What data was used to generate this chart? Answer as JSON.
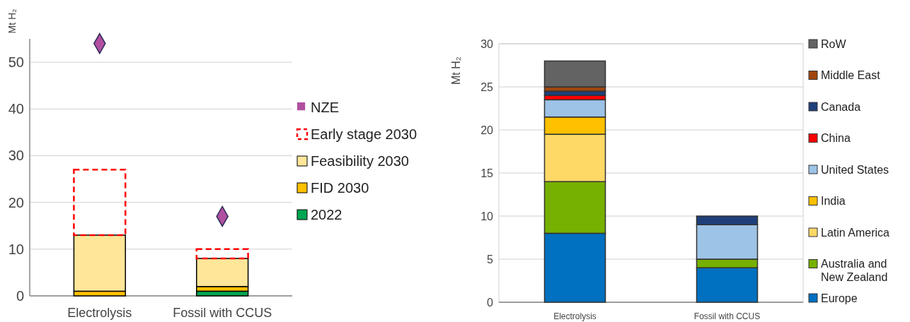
{
  "chart_data": [
    {
      "type": "bar",
      "stacked": true,
      "ylabel": "Mt H₂",
      "categories": [
        "Electrolysis",
        "Fossil with CCUS"
      ],
      "ylim": [
        0,
        55
      ],
      "yticks": [
        0,
        10,
        20,
        30,
        40,
        50
      ],
      "grid": "y",
      "legend": "right",
      "series": [
        {
          "name": "2022",
          "color": "#00a651",
          "values": [
            0,
            1
          ]
        },
        {
          "name": "FID 2030",
          "color": "#ffc000",
          "values": [
            1,
            1
          ]
        },
        {
          "name": "Feasibility 2030",
          "color": "#ffe699",
          "values": [
            12,
            6
          ]
        },
        {
          "name": "Early stage 2030",
          "color": "#ff0000",
          "line_style": "dashed",
          "values": [
            14,
            2
          ]
        },
        {
          "name": "NZE",
          "type": "scatter",
          "marker": "diamond",
          "color": "#b04fa0",
          "values": [
            54,
            17
          ]
        }
      ]
    },
    {
      "type": "bar",
      "stacked": true,
      "ylabel": "Mt H₂",
      "categories": [
        "Electrolysis",
        "Fossil with CCUS"
      ],
      "ylim": [
        0,
        30
      ],
      "yticks": [
        0,
        5,
        10,
        15,
        20,
        25,
        30
      ],
      "grid": "y",
      "legend": "right",
      "series": [
        {
          "name": "Europe",
          "color": "#0070c0",
          "values": [
            8,
            4
          ]
        },
        {
          "name": "Australia and New Zealand",
          "color": "#76b000",
          "values": [
            6,
            1
          ]
        },
        {
          "name": "Latin America",
          "color": "#ffd966",
          "values": [
            5.5,
            0
          ]
        },
        {
          "name": "India",
          "color": "#ffc000",
          "values": [
            2,
            0
          ]
        },
        {
          "name": "United States",
          "color": "#9dc3e6",
          "values": [
            2,
            4
          ]
        },
        {
          "name": "China",
          "color": "#ff0000",
          "values": [
            0.5,
            0
          ]
        },
        {
          "name": "Canada",
          "color": "#1f3f7a",
          "values": [
            0.5,
            1
          ]
        },
        {
          "name": "Middle East",
          "color": "#a0460f",
          "values": [
            0.5,
            0
          ]
        },
        {
          "name": "RoW",
          "color": "#636363",
          "values": [
            3,
            0
          ]
        }
      ]
    }
  ]
}
